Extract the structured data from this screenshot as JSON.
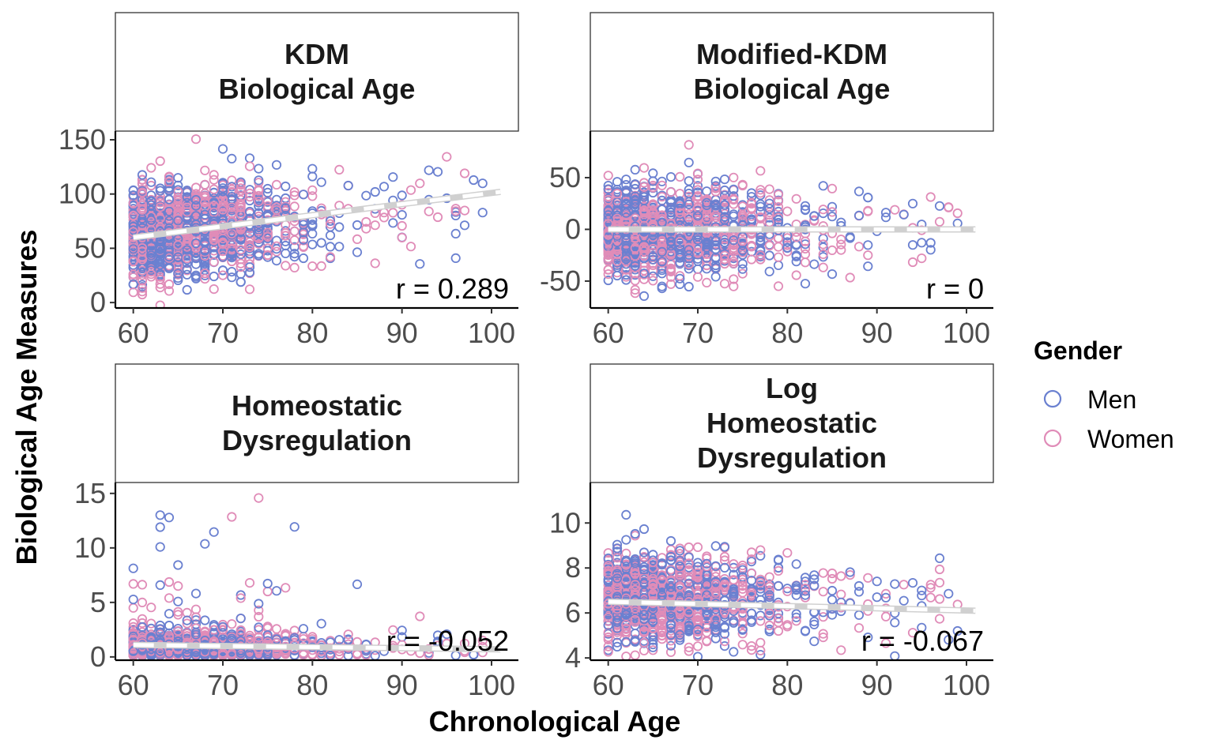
{
  "x_axis_title": "Chronological Age",
  "y_axis_title": "Biological Age Measures",
  "legend": {
    "title": "Gender",
    "items": [
      {
        "label": "Men",
        "color": "#6a80d0"
      },
      {
        "label": "Women",
        "color": "#e08cb8"
      }
    ]
  },
  "chart_data": [
    {
      "type": "scatter",
      "title": "KDM\nBiological Age",
      "corr_label": "r = 0.289",
      "xlim": [
        58,
        103
      ],
      "ylim": [
        -5,
        158
      ],
      "x_ticks": [
        "60",
        "70",
        "80",
        "90",
        "100"
      ],
      "y_ticks": [
        "0",
        "50",
        "100",
        "150"
      ],
      "trend": {
        "x": [
          60,
          101
        ],
        "y": [
          60,
          102
        ]
      },
      "spread": {
        "center_at_60": 62,
        "slope": 0.75,
        "sd": 22
      },
      "series": [
        {
          "name": "Men"
        },
        {
          "name": "Women"
        }
      ]
    },
    {
      "type": "scatter",
      "title": "Modified-KDM\nBiological Age",
      "corr_label": "r = 0",
      "xlim": [
        58,
        103
      ],
      "ylim": [
        -76,
        95
      ],
      "x_ticks": [
        "60",
        "70",
        "80",
        "90",
        "100"
      ],
      "y_ticks": [
        "-50",
        "0",
        "50"
      ],
      "trend": {
        "x": [
          60,
          101
        ],
        "y": [
          0,
          0
        ]
      },
      "spread": {
        "center_at_60": 0,
        "slope": 0,
        "sd": 22
      },
      "series": [
        {
          "name": "Men"
        },
        {
          "name": "Women"
        }
      ]
    },
    {
      "type": "scatter",
      "title": "Homeostatic\nDysregulation",
      "corr_label": "r = -0.052",
      "xlim": [
        58,
        103
      ],
      "ylim": [
        -0.3,
        16
      ],
      "x_ticks": [
        "60",
        "70",
        "80",
        "90",
        "100"
      ],
      "y_ticks": [
        "0",
        "5",
        "10",
        "15"
      ],
      "trend": {
        "x": [
          60,
          101
        ],
        "y": [
          1.1,
          0.7
        ]
      },
      "spread": {
        "center_at_60": 1.3,
        "slope": -0.01,
        "sd": 1.0
      },
      "series": [
        {
          "name": "Men"
        },
        {
          "name": "Women"
        }
      ]
    },
    {
      "type": "scatter",
      "title": "Log\nHomeostatic\nDysregulation",
      "corr_label": "r = -0.067",
      "xlim": [
        58,
        103
      ],
      "ylim": [
        3.9,
        11.8
      ],
      "x_ticks": [
        "60",
        "70",
        "80",
        "90",
        "100"
      ],
      "y_ticks": [
        "4",
        "6",
        "8",
        "10"
      ],
      "trend": {
        "x": [
          60,
          101
        ],
        "y": [
          6.5,
          6.1
        ]
      },
      "spread": {
        "center_at_60": 6.7,
        "slope": -0.012,
        "sd": 1.0
      },
      "series": [
        {
          "name": "Men"
        },
        {
          "name": "Women"
        }
      ]
    }
  ]
}
